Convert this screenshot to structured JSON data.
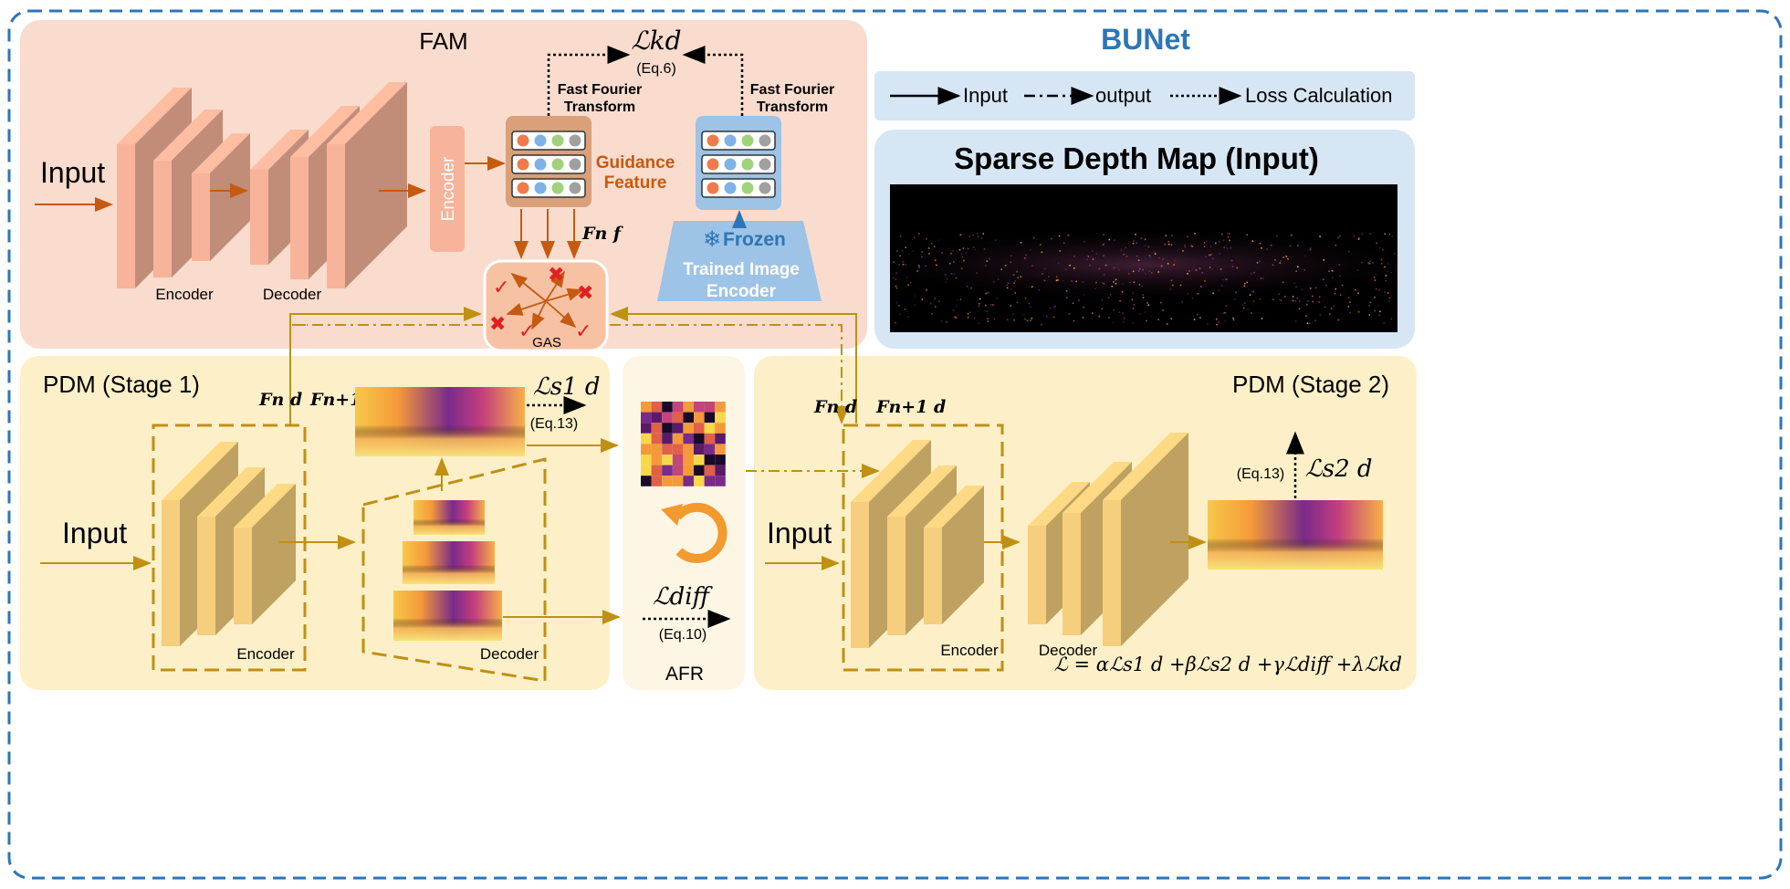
{
  "title": "BUNet",
  "legend": {
    "input": "Input",
    "output": "output",
    "loss": "Loss Calculation"
  },
  "fam": {
    "title": "FAM",
    "input_label": "Input",
    "encoder_label": "Encoder",
    "decoder_label": "Decoder",
    "encoder_block": "Encoder",
    "guidance_label": "Guidance",
    "guidance_label2": "Feature",
    "fft_label": "Fast Fourier",
    "fft_label2": "Transform",
    "kd_loss": "ℒkd",
    "kd_eq": "(Eq.6)",
    "ff_label": "Fn f",
    "frozen_label": "Frozen",
    "trained_label": "Trained Image",
    "trained_label2": "Encoder",
    "gas_label": "GAS"
  },
  "sparse": {
    "title": "Sparse Depth Map (Input)"
  },
  "pdm1": {
    "title": "PDM (Stage 1)",
    "input_label": "Input",
    "encoder_label": "Encoder",
    "decoder_label": "Decoder",
    "fd_label": "Fn d",
    "fd1_label": "Fn+1 d",
    "loss": "ℒs1 d",
    "eq": "(Eq.13)"
  },
  "afr": {
    "title": "AFR",
    "loss": "ℒdiff",
    "eq": "(Eq.10)"
  },
  "pdm2": {
    "title": "PDM (Stage 2)",
    "input_label": "Input",
    "encoder_label": "Encoder",
    "decoder_label": "Decoder",
    "fd_label": "Fn d",
    "fd1_label": "Fn+1 d",
    "loss": "ℒs2 d",
    "eq": "(Eq.13)",
    "total_loss": "ℒ = αℒs1 d +βℒs2 d +γℒdiff +λℒkd"
  },
  "colors": {
    "fam_bg": "#f9dccd",
    "pdm_bg": "#fdf0c9",
    "afr_bg": "#fef6e4",
    "legend_bg": "#d6e6f5",
    "title_blue": "#2e75b6",
    "fam_block": "#f7b49a",
    "pdm_block": "#f5cf7e",
    "arrow_orange": "#c55a11",
    "arrow_gold": "#c09013"
  }
}
